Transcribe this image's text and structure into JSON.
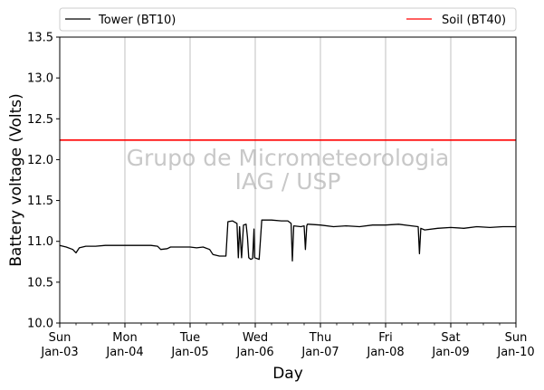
{
  "chart_data": {
    "type": "line",
    "title": "",
    "xlabel": "Day",
    "ylabel": "Battery voltage (Volts)",
    "ylim": [
      10.0,
      13.5
    ],
    "xlim": [
      0,
      7
    ],
    "x_unit": "days since Sun Jan-03 00:00",
    "yticks": [
      "10.0",
      "10.5",
      "11.0",
      "11.5",
      "12.0",
      "12.5",
      "13.0",
      "13.5"
    ],
    "xticks": [
      {
        "x": 0,
        "day": "Sun",
        "date": "Jan-03"
      },
      {
        "x": 1,
        "day": "Mon",
        "date": "Jan-04"
      },
      {
        "x": 2,
        "day": "Tue",
        "date": "Jan-05"
      },
      {
        "x": 3,
        "day": "Wed",
        "date": "Jan-06"
      },
      {
        "x": 4,
        "day": "Thu",
        "date": "Jan-07"
      },
      {
        "x": 5,
        "day": "Fri",
        "date": "Jan-08"
      },
      {
        "x": 6,
        "day": "Sat",
        "date": "Jan-09"
      },
      {
        "x": 7,
        "day": "Sun",
        "date": "Jan-10"
      }
    ],
    "grid": "vertical lines at major ticks",
    "legend_placement": "above plot, spanning width",
    "watermark": [
      "Grupo de Micrometeorologia",
      "IAG / USP"
    ],
    "series": [
      {
        "name": "Tower (BT10)",
        "color": "#000000",
        "points": [
          [
            0.0,
            10.95
          ],
          [
            0.1,
            10.93
          ],
          [
            0.2,
            10.9
          ],
          [
            0.25,
            10.86
          ],
          [
            0.3,
            10.92
          ],
          [
            0.4,
            10.94
          ],
          [
            0.55,
            10.94
          ],
          [
            0.7,
            10.95
          ],
          [
            0.85,
            10.95
          ],
          [
            1.0,
            10.95
          ],
          [
            1.2,
            10.95
          ],
          [
            1.4,
            10.95
          ],
          [
            1.5,
            10.94
          ],
          [
            1.55,
            10.9
          ],
          [
            1.65,
            10.91
          ],
          [
            1.7,
            10.93
          ],
          [
            1.8,
            10.93
          ],
          [
            1.9,
            10.93
          ],
          [
            2.0,
            10.93
          ],
          [
            2.1,
            10.92
          ],
          [
            2.2,
            10.93
          ],
          [
            2.3,
            10.9
          ],
          [
            2.35,
            10.84
          ],
          [
            2.45,
            10.82
          ],
          [
            2.55,
            10.82
          ],
          [
            2.58,
            11.24
          ],
          [
            2.65,
            11.25
          ],
          [
            2.72,
            11.22
          ],
          [
            2.74,
            10.8
          ],
          [
            2.76,
            11.18
          ],
          [
            2.79,
            10.8
          ],
          [
            2.82,
            11.2
          ],
          [
            2.86,
            11.21
          ],
          [
            2.88,
            11.05
          ],
          [
            2.9,
            10.8
          ],
          [
            2.93,
            10.78
          ],
          [
            2.96,
            10.79
          ],
          [
            2.98,
            11.15
          ],
          [
            2.99,
            10.8
          ],
          [
            3.06,
            10.78
          ],
          [
            3.1,
            11.26
          ],
          [
            3.25,
            11.26
          ],
          [
            3.4,
            11.25
          ],
          [
            3.5,
            11.25
          ],
          [
            3.55,
            11.22
          ],
          [
            3.57,
            10.76
          ],
          [
            3.59,
            11.19
          ],
          [
            3.7,
            11.18
          ],
          [
            3.75,
            11.19
          ],
          [
            3.77,
            10.9
          ],
          [
            3.79,
            11.19
          ],
          [
            3.8,
            11.21
          ],
          [
            3.82,
            11.21
          ],
          [
            4.0,
            11.2
          ],
          [
            4.2,
            11.18
          ],
          [
            4.4,
            11.19
          ],
          [
            4.6,
            11.18
          ],
          [
            4.8,
            11.2
          ],
          [
            5.0,
            11.2
          ],
          [
            5.2,
            11.21
          ],
          [
            5.4,
            11.19
          ],
          [
            5.5,
            11.18
          ],
          [
            5.52,
            10.85
          ],
          [
            5.54,
            11.16
          ],
          [
            5.6,
            11.14
          ],
          [
            5.8,
            11.16
          ],
          [
            6.0,
            11.17
          ],
          [
            6.2,
            11.16
          ],
          [
            6.4,
            11.18
          ],
          [
            6.6,
            11.17
          ],
          [
            6.8,
            11.18
          ],
          [
            7.0,
            11.18
          ]
        ]
      },
      {
        "name": "Soil (BT40)",
        "color": "#ff0000",
        "points": [
          [
            0.0,
            12.24
          ],
          [
            7.0,
            12.24
          ]
        ]
      }
    ]
  }
}
